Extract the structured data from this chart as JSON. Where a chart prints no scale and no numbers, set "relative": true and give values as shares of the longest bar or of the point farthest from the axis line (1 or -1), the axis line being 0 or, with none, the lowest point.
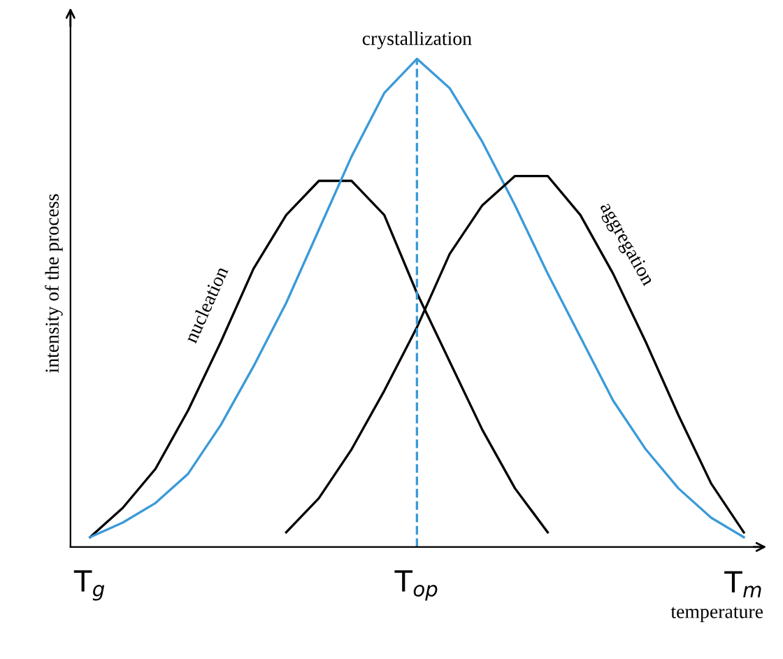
{
  "chart_data": {
    "type": "line",
    "relative": true,
    "xlabel": "temperature",
    "ylabel": "intensity of the process",
    "categories": [
      "T$_{g}$",
      null,
      null,
      null,
      null,
      null,
      null,
      null,
      null,
      null,
      "T$_{op}$",
      null,
      null,
      null,
      null,
      null,
      null,
      null,
      null,
      null,
      "T$_{m}$"
    ],
    "series": [
      {
        "name": "nucleation",
        "color": "#000000",
        "values": [
          0.02,
          0.08,
          0.16,
          0.28,
          0.42,
          0.57,
          0.68,
          0.75,
          0.75,
          0.68,
          0.52,
          0.38,
          0.24,
          0.12,
          0.03,
          null,
          null,
          null,
          null,
          null,
          null
        ]
      },
      {
        "name": "crystallization",
        "color": "#3a9ad9",
        "values": [
          0.02,
          0.05,
          0.09,
          0.15,
          0.25,
          0.37,
          0.5,
          0.65,
          0.8,
          0.93,
          1.0,
          0.94,
          0.83,
          0.7,
          0.56,
          0.43,
          0.3,
          0.2,
          0.12,
          0.06,
          0.02
        ]
      },
      {
        "name": "aggregation",
        "color": "#000000",
        "values": [
          null,
          null,
          null,
          null,
          null,
          null,
          0.03,
          0.1,
          0.2,
          0.32,
          0.45,
          0.6,
          0.7,
          0.76,
          0.76,
          0.68,
          0.56,
          0.42,
          0.27,
          0.13,
          0.03
        ]
      }
    ],
    "ref_lines": [
      {
        "axis": "x",
        "value": "T$_{op}$",
        "color": "#3a9ad9",
        "line_style": "dashed"
      }
    ],
    "grid": false,
    "legend": false,
    "marker": "none",
    "line_style": "solid"
  }
}
